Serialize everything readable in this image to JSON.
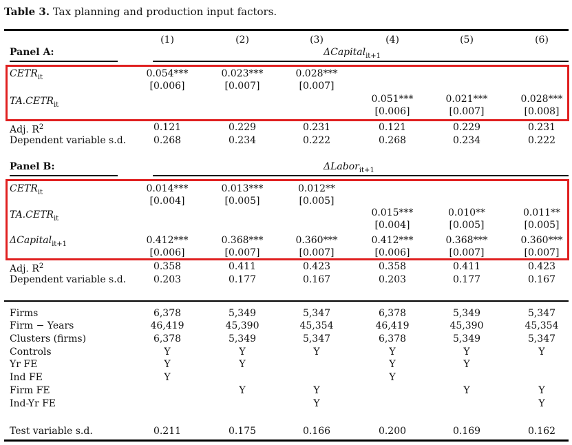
{
  "caption": {
    "label": "Table 3.",
    "text": "Tax planning and production input factors."
  },
  "columns": [
    "(1)",
    "(2)",
    "(3)",
    "(4)",
    "(5)",
    "(6)"
  ],
  "panelA": {
    "title": "Panel A:",
    "dep_var": "ΔCapital",
    "dep_sub": "it+1",
    "rows": [
      {
        "label": "CETR",
        "sub": "it",
        "vals": [
          "0.054***",
          "0.023***",
          "0.028***",
          "",
          "",
          ""
        ],
        "ses": [
          "[0.006]",
          "[0.007]",
          "[0.007]",
          "",
          "",
          ""
        ]
      },
      {
        "label": "TA.CETR",
        "sub": "it",
        "vals": [
          "",
          "",
          "",
          "0.051***",
          "0.021***",
          "0.028***"
        ],
        "ses": [
          "",
          "",
          "",
          "[0.006]",
          "[0.007]",
          "[0.008]"
        ]
      }
    ],
    "adj_r2": {
      "label": "Adj. R",
      "sup": "2",
      "vals": [
        "0.121",
        "0.229",
        "0.231",
        "0.121",
        "0.229",
        "0.231"
      ]
    },
    "dep_sd": {
      "label": "Dependent variable s.d.",
      "vals": [
        "0.268",
        "0.234",
        "0.222",
        "0.268",
        "0.234",
        "0.222"
      ]
    }
  },
  "panelB": {
    "title": "Panel B:",
    "dep_var": "ΔLabor",
    "dep_sub": "it+1",
    "rows": [
      {
        "label": "CETR",
        "sub": "it",
        "vals": [
          "0.014***",
          "0.013***",
          "0.012**",
          "",
          "",
          ""
        ],
        "ses": [
          "[0.004]",
          "[0.005]",
          "[0.005]",
          "",
          "",
          ""
        ]
      },
      {
        "label": "TA.CETR",
        "sub": "it",
        "vals": [
          "",
          "",
          "",
          "0.015***",
          "0.010**",
          "0.011**"
        ],
        "ses": [
          "",
          "",
          "",
          "[0.004]",
          "[0.005]",
          "[0.005]"
        ]
      },
      {
        "label": "ΔCapital",
        "sub": "it+1",
        "vals": [
          "0.412***",
          "0.368***",
          "0.360***",
          "0.412***",
          "0.368***",
          "0.360***"
        ],
        "ses": [
          "[0.006]",
          "[0.007]",
          "[0.007]",
          "[0.006]",
          "[0.007]",
          "[0.007]"
        ]
      }
    ],
    "adj_r2": {
      "label": "Adj. R",
      "sup": "2",
      "vals": [
        "0.358",
        "0.411",
        "0.423",
        "0.358",
        "0.411",
        "0.423"
      ]
    },
    "dep_sd": {
      "label": "Dependent variable s.d.",
      "vals": [
        "0.203",
        "0.177",
        "0.167",
        "0.203",
        "0.177",
        "0.167"
      ]
    }
  },
  "footer": [
    {
      "label": "Firms",
      "vals": [
        "6,378",
        "5,349",
        "5,347",
        "6,378",
        "5,349",
        "5,347"
      ]
    },
    {
      "label": "Firm − Years",
      "vals": [
        "46,419",
        "45,390",
        "45,354",
        "46,419",
        "45,390",
        "45,354"
      ]
    },
    {
      "label": "Clusters (firms)",
      "vals": [
        "6,378",
        "5,349",
        "5,347",
        "6,378",
        "5,349",
        "5,347"
      ]
    },
    {
      "label": "Controls",
      "vals": [
        "Y",
        "Y",
        "Y",
        "Y",
        "Y",
        "Y"
      ]
    },
    {
      "label": "Yr FE",
      "vals": [
        "Y",
        "Y",
        "",
        "Y",
        "Y",
        ""
      ]
    },
    {
      "label": "Ind FE",
      "vals": [
        "Y",
        "",
        "",
        "Y",
        "",
        ""
      ]
    },
    {
      "label": "Firm FE",
      "vals": [
        "",
        "Y",
        "Y",
        "",
        "Y",
        "Y"
      ]
    },
    {
      "label": "Ind-Yr FE",
      "vals": [
        "",
        "",
        "Y",
        "",
        "",
        "Y"
      ]
    }
  ],
  "test_sd": {
    "label": "Test variable s.d.",
    "vals": [
      "0.211",
      "0.175",
      "0.166",
      "0.200",
      "0.169",
      "0.162"
    ]
  },
  "colors": {
    "highlight": "#e02020"
  }
}
